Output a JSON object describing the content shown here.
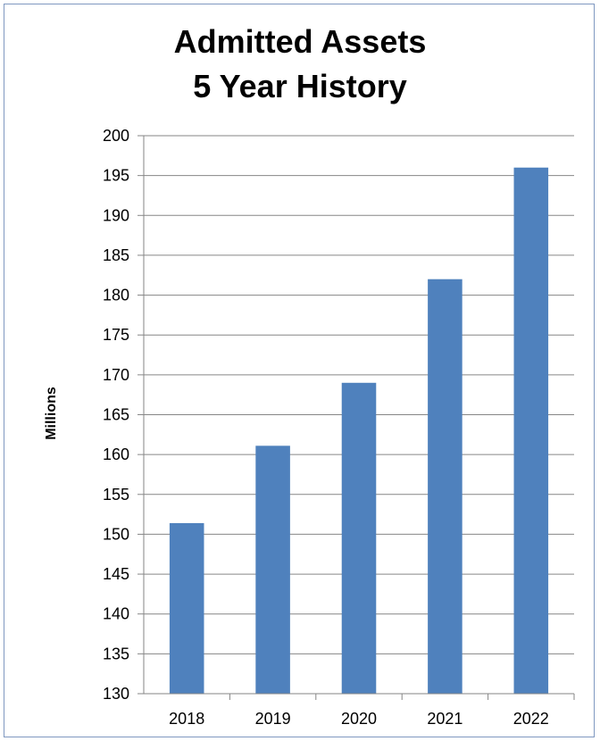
{
  "chart_data": {
    "type": "bar",
    "title_lines": [
      "Admitted Assets",
      "5 Year History"
    ],
    "xlabel": "",
    "ylabel": "Millions",
    "categories": [
      "2018",
      "2019",
      "2020",
      "2021",
      "2022"
    ],
    "values": [
      151.4,
      161.1,
      169.0,
      182.0,
      196.0
    ],
    "ylim": [
      130,
      200
    ],
    "yticks": [
      200,
      195,
      190,
      185,
      180,
      175,
      170,
      165,
      160,
      155,
      150,
      145,
      140,
      135,
      130
    ],
    "grid": true,
    "legend": "none",
    "colors": {
      "bar": "#4f81bd",
      "grid": "#868686",
      "frame": "#7f98c0"
    }
  }
}
